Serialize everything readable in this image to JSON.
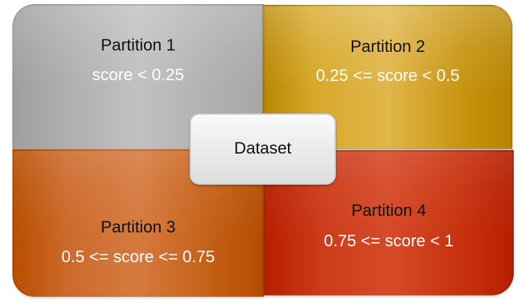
{
  "diagram": {
    "center": {
      "label": "Dataset"
    },
    "partitions": [
      {
        "title": "Partition 1",
        "condition": "score < 0.25",
        "color": "#B4B4B4"
      },
      {
        "title": "Partition 2",
        "condition": "0.25 <= score < 0.5",
        "color": "#D8AA2E"
      },
      {
        "title": "Partition 3",
        "condition": "0.5 <= score <= 0.75",
        "color": "#D06B2D"
      },
      {
        "title": "Partition 4",
        "condition": "0.75 <= score < 1",
        "color": "#C93A17"
      }
    ]
  }
}
